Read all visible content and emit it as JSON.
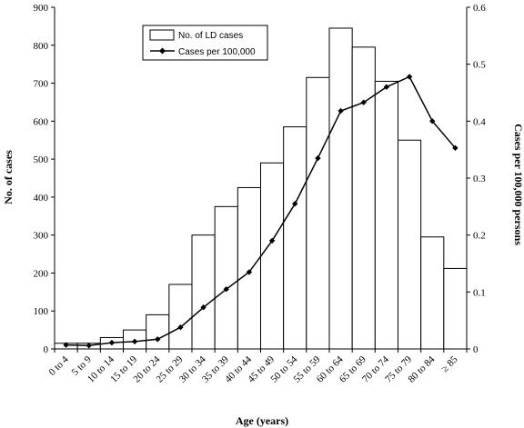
{
  "chart_data": {
    "type": "bar",
    "xlabel": "Age (years)",
    "ylabel_left": "No. of cases",
    "ylabel_right": "Cases per 100,000 persons",
    "ylim_left": [
      0,
      900
    ],
    "ylim_right": [
      0,
      0.6
    ],
    "yticks_left": [
      "0",
      "100",
      "200",
      "300",
      "400",
      "500",
      "600",
      "700",
      "800",
      "900"
    ],
    "yticks_right": [
      "0",
      "0.1",
      "0.2",
      "0.3",
      "0.4",
      "0.5",
      "0.6"
    ],
    "categories": [
      "0 to 4",
      "5 to 9",
      "10 to 14",
      "15 to 19",
      "20 to 24",
      "25 to 29",
      "30 to 34",
      "35 to 39",
      "40 to 44",
      "45 to 49",
      "50 to 54",
      "55 to 59",
      "60 to 64",
      "65 to 69",
      "70 to 74",
      "75 to 79",
      "80 to 84",
      "≥ 85"
    ],
    "grid": false,
    "legend_position": "top-left",
    "series": [
      {
        "name": "No. of LD cases",
        "type": "bar",
        "axis": "left",
        "values": [
          15,
          15,
          30,
          50,
          90,
          170,
          300,
          375,
          425,
          490,
          585,
          715,
          845,
          795,
          705,
          550,
          295,
          212
        ]
      },
      {
        "name": "Cases per 100,000",
        "type": "line",
        "axis": "right",
        "marker": "diamond",
        "values": [
          0.007,
          0.006,
          0.011,
          0.013,
          0.017,
          0.038,
          0.073,
          0.105,
          0.135,
          0.19,
          0.255,
          0.335,
          0.418,
          0.433,
          0.46,
          0.478,
          0.4,
          0.353
        ]
      }
    ]
  }
}
